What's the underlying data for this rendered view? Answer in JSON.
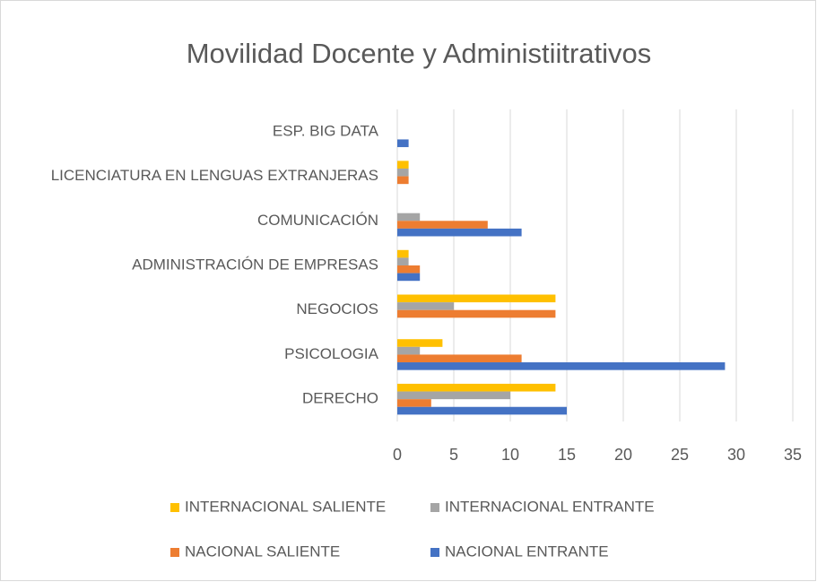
{
  "chart_data": {
    "type": "barh",
    "title": "Movilidad Docente y Administiitrativos",
    "categories": [
      "DERECHO",
      "PSICOLOGIA",
      "NEGOCIOS",
      "ADMINISTRACIÓN DE EMPRESAS",
      "COMUNICACIÓN",
      "LICENCIATURA EN LENGUAS EXTRANJERAS",
      "ESP. BIG DATA"
    ],
    "series": [
      {
        "name": "INTERNACIONAL SALIENTE",
        "color": "#ffc000",
        "values": [
          14,
          4,
          14,
          1,
          0,
          1,
          0
        ]
      },
      {
        "name": "INTERNACIONAL ENTRANTE",
        "color": "#a5a5a5",
        "values": [
          10,
          2,
          5,
          1,
          2,
          1,
          0
        ]
      },
      {
        "name": "NACIONAL SALIENTE",
        "color": "#ed7d31",
        "values": [
          3,
          11,
          14,
          2,
          8,
          1,
          0
        ]
      },
      {
        "name": "NACIONAL ENTRANTE",
        "color": "#4472c4",
        "values": [
          15,
          29,
          0,
          2,
          11,
          0,
          1
        ]
      }
    ],
    "xlim": [
      0,
      35
    ],
    "xticks": [
      0,
      5,
      10,
      15,
      20,
      25,
      30,
      35
    ],
    "grid": true
  }
}
